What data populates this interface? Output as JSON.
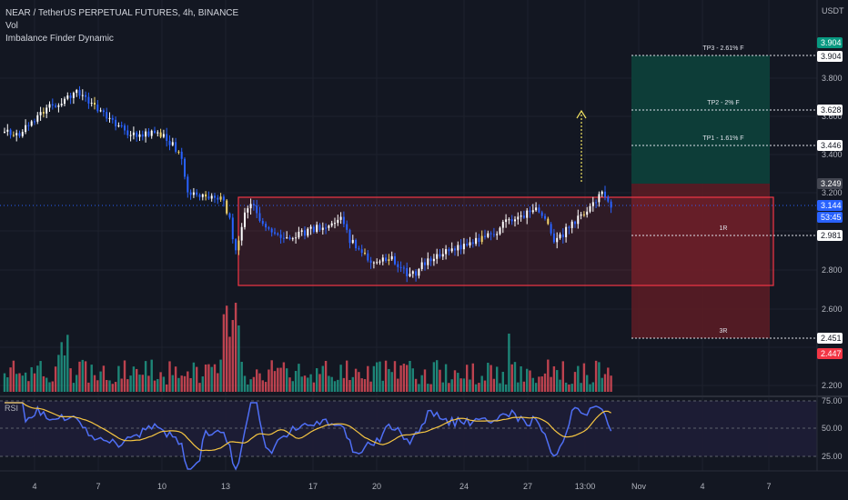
{
  "header": {
    "symbol_line": "NEAR / TetherUS PERPETUAL FUTURES, 4h, BINANCE",
    "indicator_vol": "Vol",
    "indicator_imbalance": "Imbalance Finder Dynamic",
    "currency": "USDT"
  },
  "rsi_label": "RSI",
  "price_axis": {
    "ticks": [
      "3.800",
      "3.600",
      "3.400",
      "3.200",
      "2.800",
      "2.600",
      "2.200"
    ],
    "tags": [
      {
        "label": "3.904",
        "bg": "#089981",
        "fg": "#ffffff"
      },
      {
        "label": "3.904",
        "bg": "#ffffff",
        "fg": "#131722"
      },
      {
        "label": "3.628",
        "bg": "#ffffff",
        "fg": "#131722"
      },
      {
        "label": "3.446",
        "bg": "#ffffff",
        "fg": "#131722"
      },
      {
        "label": "3.249",
        "bg": "#434651",
        "fg": "#ffffff"
      },
      {
        "label": "3.144",
        "bg": "#2962ff",
        "fg": "#ffffff"
      },
      {
        "label": "53:45",
        "bg": "#2962ff",
        "fg": "#ffffff"
      },
      {
        "label": "2.981",
        "bg": "#ffffff",
        "fg": "#131722"
      },
      {
        "label": "2.451",
        "bg": "#ffffff",
        "fg": "#131722"
      },
      {
        "label": "2.447",
        "bg": "#f23645",
        "fg": "#ffffff"
      }
    ]
  },
  "rsi_axis": {
    "ticks": [
      "75.00",
      "50.00",
      "25.00"
    ]
  },
  "time_axis": {
    "ticks": [
      "4",
      "7",
      "10",
      "13",
      "17",
      "20",
      "24",
      "27",
      "13:00",
      "Nov",
      "4",
      "7"
    ]
  },
  "position": {
    "tp3": "TP3 - 2.61% F",
    "tp2": "TP2 - 2% F",
    "tp1": "TP1 - 1.61% F",
    "r1": "1R",
    "r3": "3R"
  },
  "colors": {
    "background": "#131722",
    "bull": "#ffffff",
    "bear": "#2962ff",
    "imbalance": "#f5d76e",
    "vol_up": "#22ab94",
    "vol_down": "#f7525f",
    "rsi_line": "#4f6ff5",
    "rsi_ma": "#f5c542",
    "box_border": "#f23645",
    "target_zone": "#0d3f3a",
    "stop_zone": "#5a1c25"
  }
}
